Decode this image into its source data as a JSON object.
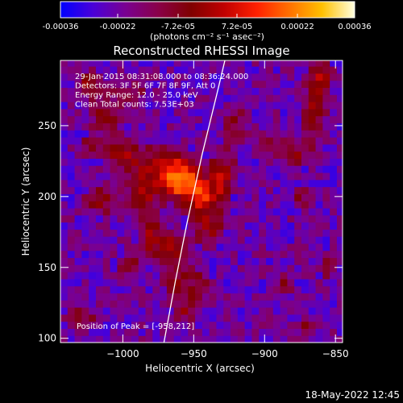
{
  "chart_data": {
    "type": "heatmap",
    "title": "Reconstructed RHESSI Image",
    "xlabel": "Heliocentric X (arcsec)",
    "ylabel": "Heliocentric Y (arcsec)",
    "xlim": [
      -1044,
      -845
    ],
    "ylim": [
      97,
      296
    ],
    "x_ticks": [
      -1000,
      -950,
      -900,
      -850
    ],
    "x_tick_labels": [
      "−1000",
      "−950",
      "−900",
      "−850"
    ],
    "y_ticks": [
      100,
      150,
      200,
      250
    ],
    "y_tick_labels": [
      "100",
      "150",
      "200",
      "250"
    ],
    "colorbar": {
      "range": [
        -0.00036,
        0.00036
      ],
      "ticks": [
        -0.00036,
        -0.00022,
        -7.2e-05,
        7.2e-05,
        0.00022,
        0.00036
      ],
      "tick_labels": [
        "-0.00036",
        "-0.00022",
        "-7.2e-05",
        "7.2e-05",
        "0.00022",
        "0.00036"
      ],
      "unit_text": "(photons cm⁻² s⁻¹ asec⁻²)",
      "colormap": [
        "#0000ff",
        "#4a00d8",
        "#7a0090",
        "#8a0048",
        "#800000",
        "#c00000",
        "#ff2000",
        "#ff7000",
        "#ffc000",
        "#ffffe0"
      ]
    },
    "info_lines": [
      "29-Jan-2015 08:31:08.000 to 08:36:24.000",
      "Detectors: 3F 5F 6F 7F 8F 9F, Att 0",
      "Energy Range: 12.0 - 25.0 keV",
      "Clean     Total counts: 7.53E+03"
    ],
    "peak_text": "Position of Peak = [-958,212]",
    "peak": [
      -958,
      212
    ],
    "limb_curve": [
      [
        -971,
        97
      ],
      [
        -963,
        140
      ],
      [
        -955,
        180
      ],
      [
        -944,
        230
      ],
      [
        -933,
        275
      ],
      [
        -928,
        296
      ]
    ],
    "blobs": [
      {
        "x": -958,
        "y": 212,
        "sx": 9,
        "sy": 9,
        "amp": 1.0
      },
      {
        "x": -970,
        "y": 222,
        "sx": 12,
        "sy": 10,
        "amp": 0.62
      },
      {
        "x": -945,
        "y": 200,
        "sx": 9,
        "sy": 8,
        "amp": 0.65
      },
      {
        "x": -985,
        "y": 200,
        "sx": 8,
        "sy": 12,
        "amp": 0.55
      },
      {
        "x": -1000,
        "y": 230,
        "sx": 10,
        "sy": 8,
        "amp": 0.5
      },
      {
        "x": -1012,
        "y": 258,
        "sx": 8,
        "sy": 9,
        "amp": 0.45
      },
      {
        "x": -995,
        "y": 272,
        "sx": 8,
        "sy": 6,
        "amp": 0.42
      },
      {
        "x": -1025,
        "y": 280,
        "sx": 7,
        "sy": 7,
        "amp": 0.45
      },
      {
        "x": -930,
        "y": 215,
        "sx": 7,
        "sy": 12,
        "amp": 0.55
      },
      {
        "x": -940,
        "y": 180,
        "sx": 8,
        "sy": 10,
        "amp": 0.5
      },
      {
        "x": -965,
        "y": 165,
        "sx": 7,
        "sy": 8,
        "amp": 0.48
      },
      {
        "x": -980,
        "y": 170,
        "sx": 7,
        "sy": 10,
        "amp": 0.45
      },
      {
        "x": -962,
        "y": 140,
        "sx": 7,
        "sy": 10,
        "amp": 0.42
      },
      {
        "x": -945,
        "y": 138,
        "sx": 6,
        "sy": 8,
        "amp": 0.4
      },
      {
        "x": -955,
        "y": 120,
        "sx": 7,
        "sy": 8,
        "amp": 0.38
      },
      {
        "x": -1015,
        "y": 198,
        "sx": 9,
        "sy": 8,
        "amp": 0.42
      },
      {
        "x": -995,
        "y": 150,
        "sx": 7,
        "sy": 7,
        "amp": 0.35
      },
      {
        "x": -920,
        "y": 250,
        "sx": 6,
        "sy": 10,
        "amp": 0.4
      },
      {
        "x": -900,
        "y": 235,
        "sx": 6,
        "sy": 8,
        "amp": 0.35
      },
      {
        "x": -880,
        "y": 230,
        "sx": 7,
        "sy": 8,
        "amp": 0.42
      },
      {
        "x": -865,
        "y": 260,
        "sx": 6,
        "sy": 18,
        "amp": 0.5
      },
      {
        "x": -860,
        "y": 285,
        "sx": 6,
        "sy": 8,
        "amp": 0.45
      },
      {
        "x": -875,
        "y": 200,
        "sx": 5,
        "sy": 6,
        "amp": 0.35
      },
      {
        "x": -885,
        "y": 140,
        "sx": 5,
        "sy": 5,
        "amp": 0.4
      },
      {
        "x": -855,
        "y": 150,
        "sx": 5,
        "sy": 6,
        "amp": 0.38
      },
      {
        "x": -870,
        "y": 108,
        "sx": 6,
        "sy": 6,
        "amp": 0.4
      },
      {
        "x": -1030,
        "y": 115,
        "sx": 8,
        "sy": 6,
        "amp": 0.45
      },
      {
        "x": -1025,
        "y": 235,
        "sx": 5,
        "sy": 6,
        "amp": 0.35
      },
      {
        "x": -920,
        "y": 105,
        "sx": 5,
        "sy": 5,
        "amp": 0.3
      }
    ]
  },
  "timestamp": "18-May-2022 12:45"
}
